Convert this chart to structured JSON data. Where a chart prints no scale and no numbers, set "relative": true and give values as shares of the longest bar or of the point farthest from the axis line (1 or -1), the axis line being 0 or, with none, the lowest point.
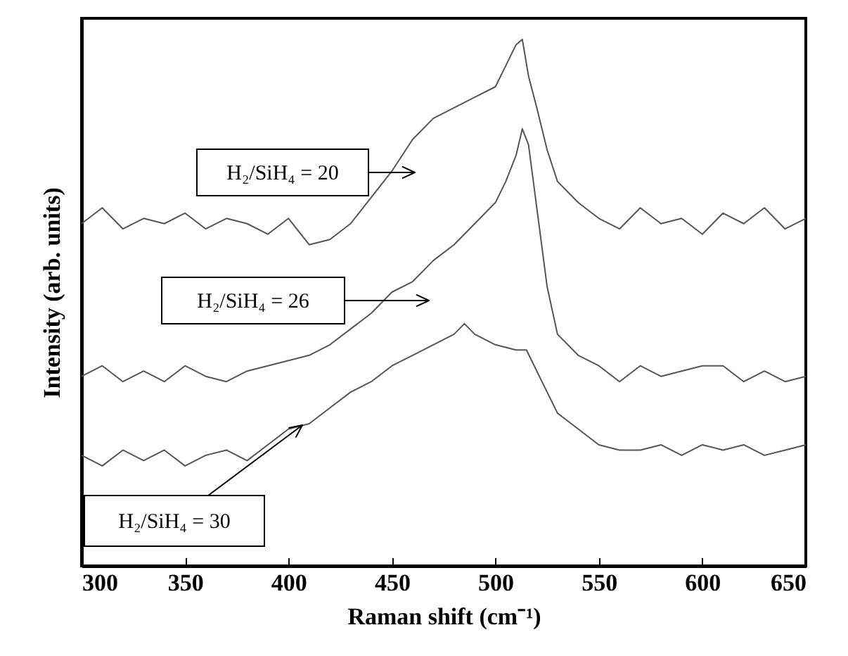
{
  "chart_data": {
    "type": "line",
    "relative": true,
    "xlabel": "Raman shift (cm⁻¹)",
    "ylabel": "Intensity (arb. units)",
    "xlim": [
      300,
      650
    ],
    "xticks": [
      300,
      350,
      400,
      450,
      500,
      550,
      600,
      650
    ],
    "series": [
      {
        "color": "#555555",
        "x": [
          300,
          310,
          320,
          330,
          340,
          350,
          360,
          370,
          380,
          390,
          400,
          410,
          420,
          430,
          440,
          450,
          460,
          470,
          480,
          490,
          500,
          505,
          510,
          513,
          516,
          520,
          525,
          530,
          540,
          550,
          560,
          570,
          580,
          590,
          600,
          610,
          620,
          630,
          640,
          650
        ],
        "values": [
          0.65,
          0.68,
          0.64,
          0.66,
          0.65,
          0.67,
          0.64,
          0.66,
          0.65,
          0.63,
          0.66,
          0.61,
          0.62,
          0.65,
          0.7,
          0.75,
          0.81,
          0.85,
          0.87,
          0.89,
          0.91,
          0.95,
          0.99,
          1.0,
          0.93,
          0.87,
          0.79,
          0.73,
          0.69,
          0.66,
          0.64,
          0.68,
          0.65,
          0.66,
          0.63,
          0.67,
          0.65,
          0.68,
          0.64,
          0.66
        ]
      },
      {
        "color": "#555555",
        "x": [
          300,
          310,
          320,
          330,
          340,
          350,
          360,
          370,
          380,
          390,
          400,
          410,
          420,
          430,
          440,
          450,
          460,
          470,
          480,
          490,
          500,
          505,
          510,
          513,
          516,
          520,
          525,
          530,
          540,
          550,
          560,
          570,
          580,
          590,
          600,
          610,
          620,
          630,
          640,
          650
        ],
        "values": [
          0.36,
          0.38,
          0.35,
          0.37,
          0.35,
          0.38,
          0.36,
          0.35,
          0.37,
          0.38,
          0.39,
          0.4,
          0.42,
          0.45,
          0.48,
          0.52,
          0.54,
          0.58,
          0.61,
          0.65,
          0.69,
          0.73,
          0.78,
          0.83,
          0.8,
          0.68,
          0.53,
          0.44,
          0.4,
          0.38,
          0.35,
          0.38,
          0.36,
          0.37,
          0.38,
          0.38,
          0.35,
          0.37,
          0.35,
          0.36
        ]
      },
      {
        "color": "#555555",
        "x": [
          300,
          310,
          320,
          330,
          340,
          350,
          360,
          370,
          380,
          390,
          400,
          410,
          420,
          430,
          440,
          450,
          460,
          470,
          480,
          485,
          490,
          500,
          510,
          515,
          520,
          525,
          530,
          540,
          550,
          560,
          570,
          580,
          590,
          600,
          610,
          620,
          630,
          640,
          650
        ],
        "values": [
          0.21,
          0.19,
          0.22,
          0.2,
          0.22,
          0.19,
          0.21,
          0.22,
          0.2,
          0.23,
          0.26,
          0.27,
          0.3,
          0.33,
          0.35,
          0.38,
          0.4,
          0.42,
          0.44,
          0.46,
          0.44,
          0.42,
          0.41,
          0.41,
          0.37,
          0.33,
          0.29,
          0.26,
          0.23,
          0.22,
          0.22,
          0.23,
          0.21,
          0.23,
          0.22,
          0.23,
          0.21,
          0.22,
          0.23
        ]
      }
    ],
    "annotations": [
      "H₂/SiH₄ = 20",
      "H₂/SiH₄ = 26",
      "H₂/SiH₄ = 30"
    ]
  }
}
